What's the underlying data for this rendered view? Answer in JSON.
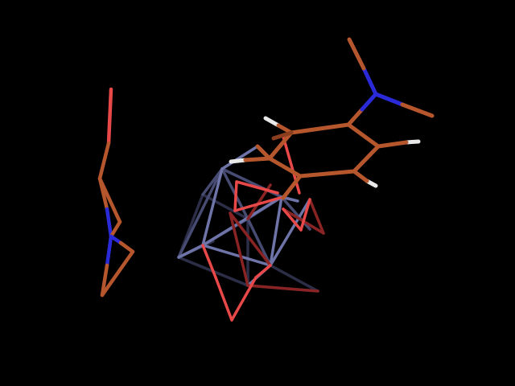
{
  "scene": {
    "background": "#000000",
    "style": "stick",
    "element_colors": {
      "carbon": "#b5562c",
      "nitrogen": "#2a2ad8",
      "oxygen": "#e84848",
      "hydrogen": "#e8e8e8",
      "metal": "#5a5e88"
    },
    "molecules": [
      {
        "name": "dimethylaminophenyl-ligand",
        "elements": [
          "carbon",
          "nitrogen",
          "hydrogen"
        ]
      },
      {
        "name": "amine-fragment",
        "elements": [
          "carbon",
          "nitrogen",
          "oxygen"
        ]
      },
      {
        "name": "metal-oxo-cage",
        "elements": [
          "metal",
          "oxygen"
        ]
      }
    ]
  }
}
